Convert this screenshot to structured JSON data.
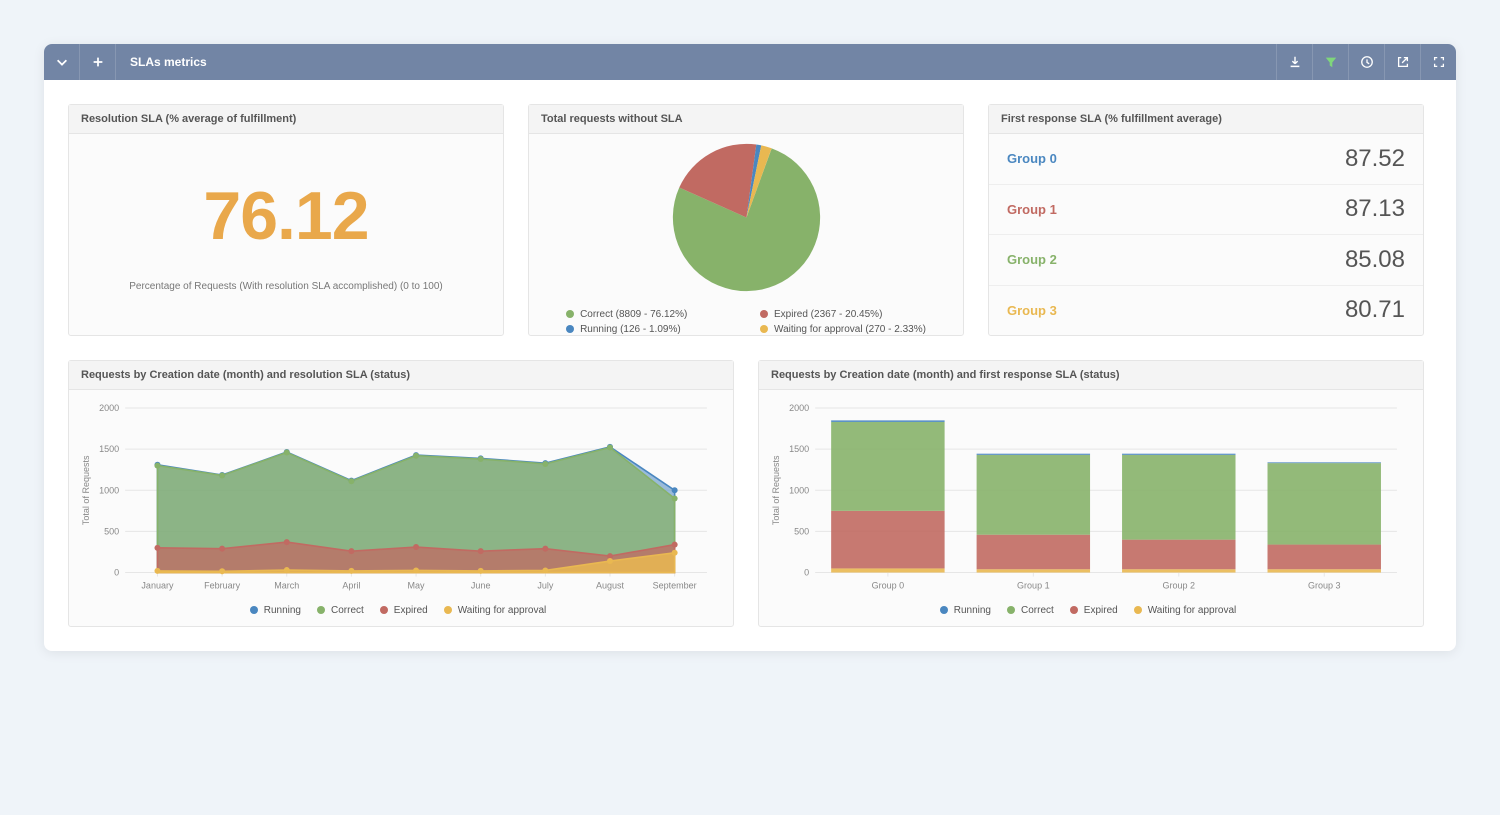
{
  "titlebar": {
    "title": "SLAs metrics"
  },
  "colors": {
    "running": "#4a87c0",
    "correct": "#87b26a",
    "expired": "#c16a62",
    "waiting": "#e9b851",
    "accent_orange": "#e9a84b",
    "grid": "#e6e6e6",
    "axis_text": "#888888"
  },
  "legend_labels": {
    "running": "Running",
    "correct": "Correct",
    "expired": "Expired",
    "waiting": "Waiting for approval"
  },
  "card_resolution": {
    "title": "Resolution SLA (% average of fulfillment)",
    "value": "76.12",
    "caption": "Percentage of Requests (With resolution SLA accomplished) (0 to 100)"
  },
  "card_pie": {
    "title": "Total requests without SLA",
    "slices": [
      {
        "key": "correct",
        "label": "Correct (8809 - 76.12%)",
        "pct": 76.12
      },
      {
        "key": "expired",
        "label": "Expired (2367 - 20.45%)",
        "pct": 20.45
      },
      {
        "key": "running",
        "label": "Running (126 - 1.09%)",
        "pct": 1.09
      },
      {
        "key": "waiting",
        "label": "Waiting for approval (270 - 2.33%)",
        "pct": 2.33
      }
    ]
  },
  "card_groups": {
    "title": "First response SLA (% fulfillment average)",
    "rows": [
      {
        "name": "Group 0",
        "value": "87.52",
        "colorKey": "running"
      },
      {
        "name": "Group 1",
        "value": "87.13",
        "colorKey": "expired"
      },
      {
        "name": "Group 2",
        "value": "85.08",
        "colorKey": "correct"
      },
      {
        "name": "Group 3",
        "value": "80.71",
        "colorKey": "waiting"
      }
    ]
  },
  "card_area": {
    "title": "Requests by Creation date (month) and resolution SLA (status)",
    "y_axis_label": "Total of Requests",
    "y_max": 2000,
    "y_step": 500,
    "categories": [
      "January",
      "February",
      "March",
      "April",
      "May",
      "June",
      "July",
      "August",
      "September"
    ],
    "series": {
      "waiting": [
        20,
        15,
        30,
        20,
        25,
        20,
        25,
        140,
        240
      ],
      "expired": [
        300,
        290,
        370,
        260,
        310,
        260,
        290,
        200,
        340
      ],
      "correct": [
        1300,
        1180,
        1460,
        1110,
        1420,
        1380,
        1320,
        1520,
        900
      ],
      "running": [
        1310,
        1185,
        1465,
        1118,
        1428,
        1388,
        1330,
        1528,
        1000
      ]
    },
    "markers": true
  },
  "card_bars": {
    "title": "Requests by Creation date (month) and first response SLA (status)",
    "y_axis_label": "Total of Requests",
    "y_max": 2000,
    "y_step": 500,
    "categories": [
      "Group 0",
      "Group 1",
      "Group 2",
      "Group 3"
    ],
    "stacks": [
      {
        "waiting": 50,
        "expired": 700,
        "correct": 1080,
        "running": 20
      },
      {
        "waiting": 40,
        "expired": 420,
        "correct": 970,
        "running": 15
      },
      {
        "waiting": 40,
        "expired": 360,
        "correct": 1030,
        "running": 15
      },
      {
        "waiting": 40,
        "expired": 300,
        "correct": 990,
        "running": 10
      }
    ],
    "bar_width_ratio": 0.78
  }
}
